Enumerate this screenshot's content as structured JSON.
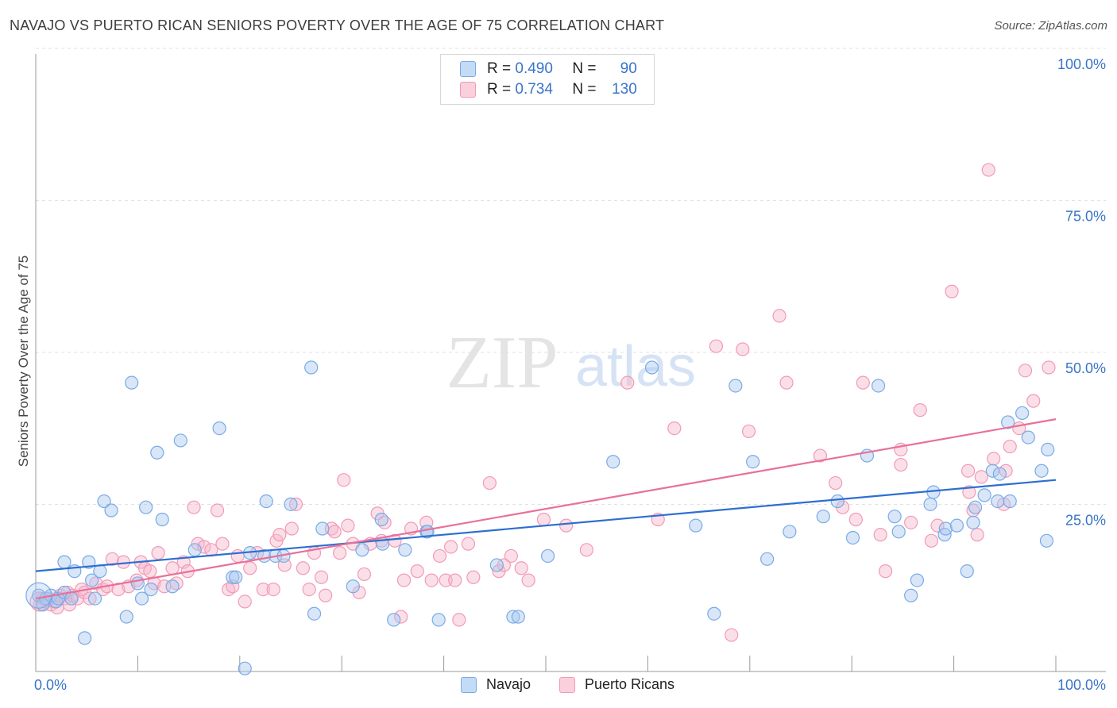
{
  "header": {
    "title": "NAVAJO VS PUERTO RICAN SENIORS POVERTY OVER THE AGE OF 75 CORRELATION CHART",
    "source": "Source: ZipAtlas.com"
  },
  "watermark": {
    "zip": "ZIP",
    "atlas": "atlas"
  },
  "legend": {
    "rows": [
      {
        "r_label": "R =",
        "r_value": "0.490",
        "n_label": "N =",
        "n_value": "90",
        "color": "#a9c8f0"
      },
      {
        "r_label": "R =",
        "r_value": "0.734",
        "n_label": "N =",
        "n_value": "130",
        "color": "#f6b8cb"
      }
    ]
  },
  "bottom_legend": [
    {
      "label": "Navajo",
      "color": "#a9c8f0"
    },
    {
      "label": "Puerto Ricans",
      "color": "#f6b8cb"
    }
  ],
  "chart_data": {
    "type": "scatter",
    "title": "NAVAJO VS PUERTO RICAN SENIORS POVERTY OVER THE AGE OF 75 CORRELATION CHART",
    "xlabel": "",
    "ylabel": "Seniors Poverty Over the Age of 75",
    "xlim": [
      0,
      100
    ],
    "ylim": [
      0,
      100
    ],
    "x_tick_labels": [
      "0.0%",
      "100.0%"
    ],
    "y_tick_labels": [
      "100.0%",
      "75.0%",
      "50.0%",
      "25.0%"
    ],
    "y_tick_values": [
      100,
      75,
      50,
      25
    ],
    "grid": true,
    "legend_position": "top-center",
    "series": [
      {
        "name": "Navajo",
        "color": "#7aaae6",
        "line_color": "#2d6fd0",
        "trend": [
          [
            0,
            16.5
          ],
          [
            100,
            31.5
          ]
        ],
        "points": [
          [
            0.3,
            12.5
          ],
          [
            0.7,
            11
          ],
          [
            1,
            12
          ],
          [
            1.5,
            12.5
          ],
          [
            2,
            11.5
          ],
          [
            2.2,
            12
          ],
          [
            2.8,
            13
          ],
          [
            2.8,
            18
          ],
          [
            3.5,
            12
          ],
          [
            3.8,
            16.5
          ],
          [
            4.8,
            5.5
          ],
          [
            5.2,
            18
          ],
          [
            5.5,
            15
          ],
          [
            5.8,
            12
          ],
          [
            6.3,
            16.5
          ],
          [
            6.7,
            28
          ],
          [
            7.4,
            26.5
          ],
          [
            8.9,
            9
          ],
          [
            9.4,
            47.5
          ],
          [
            10,
            14.5
          ],
          [
            10.4,
            12
          ],
          [
            10.8,
            27
          ],
          [
            11.3,
            13.5
          ],
          [
            11.9,
            36
          ],
          [
            12.4,
            25
          ],
          [
            13.4,
            14
          ],
          [
            14.2,
            38
          ],
          [
            15.6,
            20
          ],
          [
            18,
            40
          ],
          [
            19.3,
            15.5
          ],
          [
            19.6,
            15.5
          ],
          [
            20.5,
            0.5
          ],
          [
            21,
            19.5
          ],
          [
            22.4,
            19
          ],
          [
            22.6,
            28
          ],
          [
            23.5,
            19
          ],
          [
            24.3,
            19
          ],
          [
            25,
            27.5
          ],
          [
            27,
            50
          ],
          [
            27.3,
            9.5
          ],
          [
            28.1,
            23.5
          ],
          [
            31.1,
            14
          ],
          [
            32,
            20
          ],
          [
            33.9,
            25
          ],
          [
            34,
            21
          ],
          [
            35.1,
            8.5
          ],
          [
            36.2,
            20
          ],
          [
            38.3,
            23
          ],
          [
            38.4,
            23
          ],
          [
            39.5,
            8.5
          ],
          [
            45.2,
            17.5
          ],
          [
            46.8,
            9
          ],
          [
            47.3,
            9
          ],
          [
            50.2,
            19
          ],
          [
            56.6,
            34.5
          ],
          [
            60.4,
            50
          ],
          [
            64.7,
            24
          ],
          [
            66.5,
            9.5
          ],
          [
            68.6,
            47
          ],
          [
            70.3,
            34.5
          ],
          [
            71.7,
            18.5
          ],
          [
            73.9,
            23
          ],
          [
            77.2,
            25.5
          ],
          [
            78.6,
            28
          ],
          [
            80.1,
            22
          ],
          [
            81.5,
            35.5
          ],
          [
            82.6,
            47
          ],
          [
            84.2,
            25.5
          ],
          [
            84.6,
            23
          ],
          [
            85.8,
            12.5
          ],
          [
            86.4,
            15
          ],
          [
            87.7,
            27.5
          ],
          [
            88,
            29.5
          ],
          [
            89.1,
            22.5
          ],
          [
            89.2,
            23.5
          ],
          [
            90.3,
            24
          ],
          [
            91.3,
            16.5
          ],
          [
            91.9,
            24.5
          ],
          [
            92.1,
            27
          ],
          [
            93,
            29
          ],
          [
            93.8,
            33
          ],
          [
            94.3,
            28
          ],
          [
            94.5,
            32.5
          ],
          [
            95.3,
            41
          ],
          [
            95.5,
            28
          ],
          [
            96.7,
            42.5
          ],
          [
            97.3,
            38.5
          ],
          [
            98.6,
            33
          ],
          [
            99.1,
            21.5
          ],
          [
            99.2,
            36.5
          ]
        ]
      },
      {
        "name": "Puerto Ricans",
        "color": "#f29ab5",
        "line_color": "#e8709a",
        "trend": [
          [
            0,
            12
          ],
          [
            100,
            41.5
          ]
        ],
        "points": [
          [
            0.4,
            11
          ],
          [
            0.7,
            12
          ],
          [
            1,
            11.5
          ],
          [
            1.3,
            12
          ],
          [
            1.5,
            11
          ],
          [
            1.8,
            11.5
          ],
          [
            2.1,
            10.5
          ],
          [
            2.4,
            12.5
          ],
          [
            2.9,
            12
          ],
          [
            3.1,
            13
          ],
          [
            3.3,
            11
          ],
          [
            3.6,
            12.5
          ],
          [
            4.1,
            12
          ],
          [
            4.5,
            13.5
          ],
          [
            4.8,
            13
          ],
          [
            5.3,
            12
          ],
          [
            5.9,
            14.5
          ],
          [
            6.6,
            13.5
          ],
          [
            7,
            14
          ],
          [
            7.5,
            18.5
          ],
          [
            8.1,
            13.5
          ],
          [
            8.6,
            18
          ],
          [
            9.1,
            14
          ],
          [
            9.9,
            15
          ],
          [
            10.3,
            18
          ],
          [
            10.7,
            17
          ],
          [
            11.2,
            16.5
          ],
          [
            11.6,
            14.5
          ],
          [
            12,
            19.5
          ],
          [
            12.6,
            14
          ],
          [
            13.4,
            17
          ],
          [
            13.8,
            14.5
          ],
          [
            14.5,
            18
          ],
          [
            14.9,
            16.5
          ],
          [
            15.5,
            27
          ],
          [
            15.9,
            21
          ],
          [
            16.5,
            20.5
          ],
          [
            17.2,
            20
          ],
          [
            17.8,
            26.5
          ],
          [
            18.3,
            21
          ],
          [
            18.9,
            13.5
          ],
          [
            19.3,
            14
          ],
          [
            19.8,
            19
          ],
          [
            20.5,
            11.5
          ],
          [
            21,
            17
          ],
          [
            21.7,
            19.5
          ],
          [
            22.3,
            13.5
          ],
          [
            23.3,
            13.5
          ],
          [
            23.6,
            21.5
          ],
          [
            23.9,
            22.5
          ],
          [
            24.4,
            17.5
          ],
          [
            25.1,
            23.5
          ],
          [
            25.5,
            27.5
          ],
          [
            26.2,
            17
          ],
          [
            26.8,
            13.5
          ],
          [
            27.3,
            19.5
          ],
          [
            28,
            15.5
          ],
          [
            28.4,
            12.5
          ],
          [
            29,
            23.5
          ],
          [
            29.3,
            23
          ],
          [
            29.8,
            19.5
          ],
          [
            30.2,
            31.5
          ],
          [
            30.6,
            24
          ],
          [
            31.1,
            21
          ],
          [
            31.7,
            13
          ],
          [
            32.2,
            16
          ],
          [
            32.8,
            21
          ],
          [
            33.5,
            26
          ],
          [
            33.9,
            21.5
          ],
          [
            34.2,
            24.5
          ],
          [
            35.2,
            21.5
          ],
          [
            35.8,
            9
          ],
          [
            36.1,
            15
          ],
          [
            36.8,
            23.5
          ],
          [
            37.4,
            16.5
          ],
          [
            38.3,
            24.5
          ],
          [
            38.8,
            15
          ],
          [
            39.6,
            19
          ],
          [
            40.2,
            15
          ],
          [
            40.7,
            20.5
          ],
          [
            41.1,
            15
          ],
          [
            41.5,
            8.5
          ],
          [
            42.4,
            21
          ],
          [
            42.9,
            15.5
          ],
          [
            44.5,
            31
          ],
          [
            45.4,
            16.5
          ],
          [
            45.9,
            17.5
          ],
          [
            46.6,
            19
          ],
          [
            47.6,
            17
          ],
          [
            48.3,
            15
          ],
          [
            49.8,
            25
          ],
          [
            52,
            24
          ],
          [
            54,
            20
          ],
          [
            58,
            47.5
          ],
          [
            61,
            25
          ],
          [
            62.6,
            40
          ],
          [
            66.7,
            53.5
          ],
          [
            68.2,
            6
          ],
          [
            69.3,
            53
          ],
          [
            69.9,
            39.5
          ],
          [
            72.9,
            58.5
          ],
          [
            73.6,
            47.5
          ],
          [
            76.9,
            35.5
          ],
          [
            78.4,
            31
          ],
          [
            79.1,
            27
          ],
          [
            80.4,
            25
          ],
          [
            81.1,
            47.5
          ],
          [
            82.8,
            22.5
          ],
          [
            83.3,
            16.5
          ],
          [
            84.8,
            34
          ],
          [
            84.8,
            36.5
          ],
          [
            85.8,
            24.5
          ],
          [
            86.7,
            43
          ],
          [
            87.8,
            21.5
          ],
          [
            88.4,
            24
          ],
          [
            89.8,
            62.5
          ],
          [
            91.4,
            33
          ],
          [
            91.5,
            29.5
          ],
          [
            91.9,
            26.5
          ],
          [
            92.3,
            22.5
          ],
          [
            92.7,
            32
          ],
          [
            93.4,
            82.5
          ],
          [
            93.9,
            35
          ],
          [
            94.9,
            27.5
          ],
          [
            95.1,
            33
          ],
          [
            95.5,
            37
          ],
          [
            96.4,
            40
          ],
          [
            97,
            49.5
          ],
          [
            97.8,
            44.5
          ],
          [
            99.3,
            50
          ]
        ]
      }
    ]
  }
}
